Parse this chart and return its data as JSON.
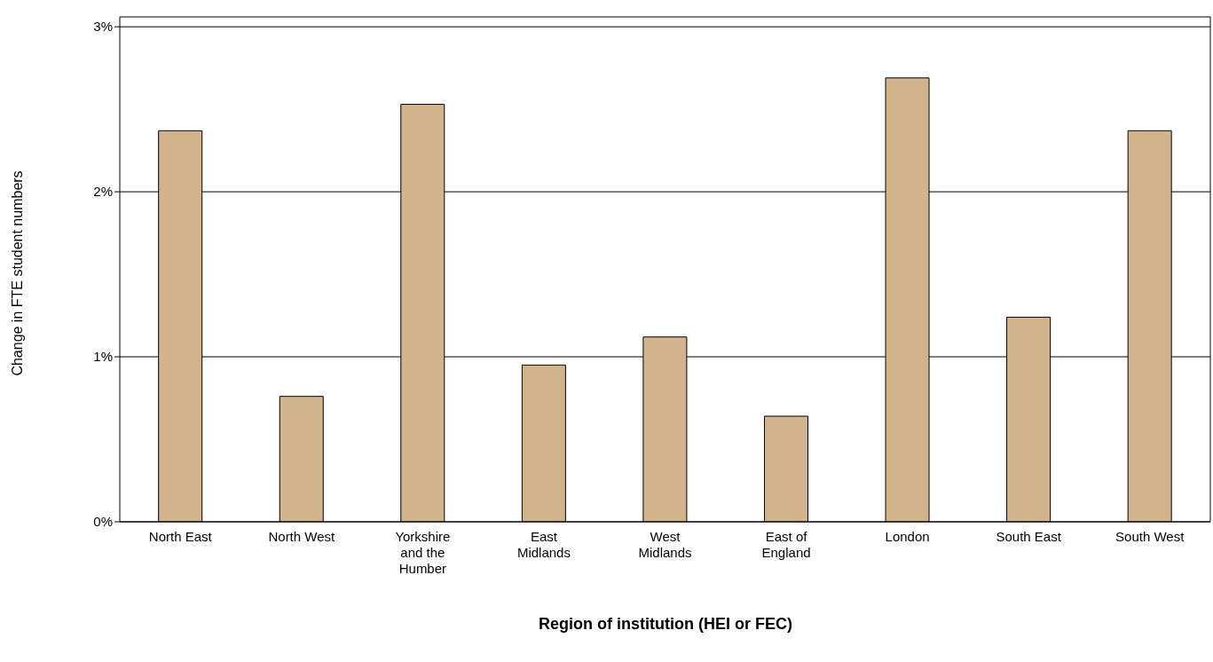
{
  "chart_data": {
    "type": "bar",
    "xlabel": "Region of institution (HEI or FEC)",
    "ylabel": "Change in FTE student numbers",
    "categories": [
      "North East",
      "North West",
      "Yorkshire and the Humber",
      "East Midlands",
      "West Midlands",
      "East of England",
      "London",
      "South East",
      "South West"
    ],
    "values": [
      2.37,
      0.76,
      2.53,
      0.95,
      1.12,
      0.64,
      2.69,
      1.24,
      2.37
    ],
    "color": "#d2b48c",
    "ylim": [
      0,
      3.06
    ],
    "yticks": [
      {
        "value": 0,
        "label": "0%"
      },
      {
        "value": 1,
        "label": "1%"
      },
      {
        "value": 2,
        "label": "2%"
      },
      {
        "value": 3,
        "label": "3%"
      }
    ],
    "grid": "y",
    "legend": false
  }
}
